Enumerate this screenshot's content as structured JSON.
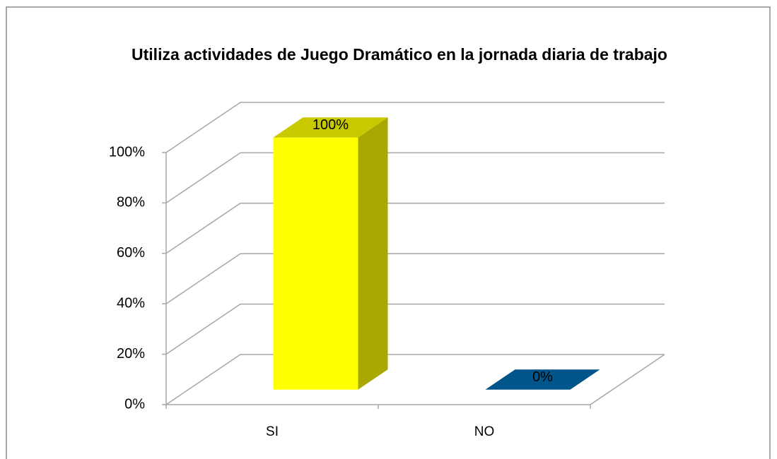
{
  "chart_data": {
    "type": "bar3d",
    "title": "Utiliza actividades de Juego Dramático en la jornada diaria de trabajo",
    "categories": [
      "SI",
      "NO"
    ],
    "values": [
      100,
      0
    ],
    "value_labels": [
      "100%",
      "0%"
    ],
    "colors": [
      "#ffff00",
      "#00568a"
    ],
    "ylim": [
      0,
      100
    ],
    "yticks": [
      {
        "value": 0,
        "label": "0%"
      },
      {
        "value": 20,
        "label": "20%"
      },
      {
        "value": 40,
        "label": "40%"
      },
      {
        "value": 60,
        "label": "60%"
      },
      {
        "value": 80,
        "label": "80%"
      },
      {
        "value": 100,
        "label": "100%"
      }
    ],
    "grid": true
  }
}
